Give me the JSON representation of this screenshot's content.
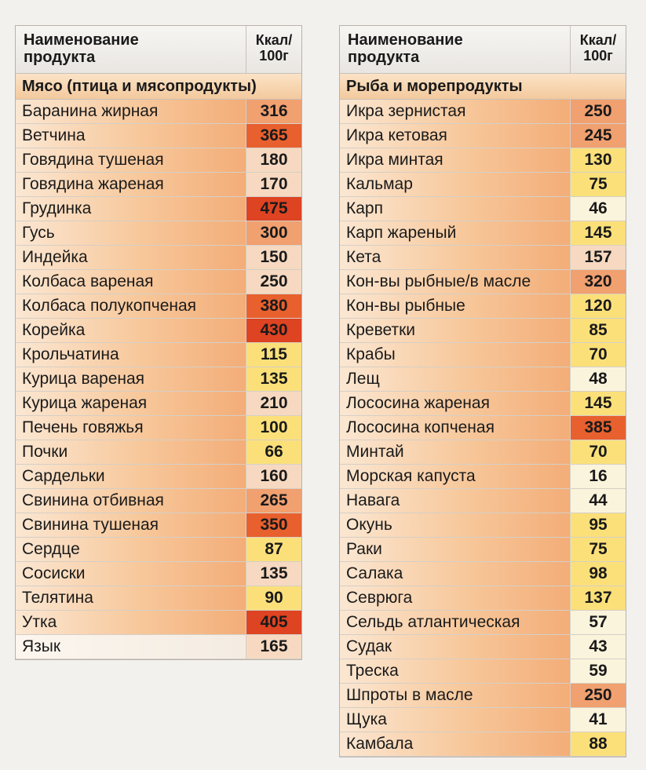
{
  "colors": {
    "very_low": "#fbf4dc",
    "low": "#fbe07a",
    "medium": "#f6d9c0",
    "elevated": "#f1a070",
    "high": "#e8602e",
    "very_high": "#de4322"
  },
  "left": {
    "header": {
      "name": "Наименование\nпродукта",
      "kcal": "Ккал/\n100г"
    },
    "section": "Мясо (птица и мясопродукты)",
    "rows": [
      {
        "name": "Баранина жирная",
        "value": "316",
        "level": "elevated"
      },
      {
        "name": "Ветчина",
        "value": "365",
        "level": "high"
      },
      {
        "name": "Говядина тушеная",
        "value": "180",
        "level": "medium"
      },
      {
        "name": "Говядина жареная",
        "value": "170",
        "level": "medium"
      },
      {
        "name": "Грудинка",
        "value": "475",
        "level": "very_high"
      },
      {
        "name": "Гусь",
        "value": "300",
        "level": "elevated"
      },
      {
        "name": "Индейка",
        "value": "150",
        "level": "medium"
      },
      {
        "name": "Колбаса вареная",
        "value": "250",
        "level": "medium"
      },
      {
        "name": "Колбаса полукопченая",
        "value": "380",
        "level": "high"
      },
      {
        "name": "Корейка",
        "value": "430",
        "level": "very_high"
      },
      {
        "name": "Крольчатина",
        "value": "115",
        "level": "low"
      },
      {
        "name": "Курица вареная",
        "value": "135",
        "level": "low"
      },
      {
        "name": "Курица жареная",
        "value": "210",
        "level": "medium"
      },
      {
        "name": "Печень говяжья",
        "value": "100",
        "level": "low"
      },
      {
        "name": "Почки",
        "value": "66",
        "level": "low"
      },
      {
        "name": "Сардельки",
        "value": "160",
        "level": "medium"
      },
      {
        "name": "Свинина отбивная",
        "value": "265",
        "level": "elevated"
      },
      {
        "name": "Свинина тушеная",
        "value": "350",
        "level": "high"
      },
      {
        "name": "Сердце",
        "value": "87",
        "level": "low"
      },
      {
        "name": "Сосиски",
        "value": "135",
        "level": "medium"
      },
      {
        "name": "Телятина",
        "value": "90",
        "level": "low"
      },
      {
        "name": "Утка",
        "value": "405",
        "level": "very_high"
      },
      {
        "name": "Язык",
        "value": "165",
        "level": "medium"
      }
    ]
  },
  "right": {
    "header": {
      "name": "Наименование\nпродукта",
      "kcal": "Ккал/\n100г"
    },
    "section": "Рыба и морепродукты",
    "rows": [
      {
        "name": "Икра зернистая",
        "value": "250",
        "level": "elevated"
      },
      {
        "name": "Икра кетовая",
        "value": "245",
        "level": "elevated"
      },
      {
        "name": "Икра минтая",
        "value": "130",
        "level": "low"
      },
      {
        "name": "Кальмар",
        "value": "75",
        "level": "low"
      },
      {
        "name": "Карп",
        "value": "46",
        "level": "very_low"
      },
      {
        "name": "Карп жареный",
        "value": "145",
        "level": "low"
      },
      {
        "name": "Кета",
        "value": "157",
        "level": "medium"
      },
      {
        "name": "Кон-вы рыбные/в масле",
        "value": "320",
        "level": "elevated"
      },
      {
        "name": "Кон-вы рыбные",
        "value": "120",
        "level": "low"
      },
      {
        "name": "Креветки",
        "value": "85",
        "level": "low"
      },
      {
        "name": "Крабы",
        "value": "70",
        "level": "low"
      },
      {
        "name": "Лещ",
        "value": "48",
        "level": "very_low"
      },
      {
        "name": "Лососина жареная",
        "value": "145",
        "level": "low"
      },
      {
        "name": "Лососина копченая",
        "value": "385",
        "level": "high"
      },
      {
        "name": "Минтай",
        "value": "70",
        "level": "low"
      },
      {
        "name": "Морская капуста",
        "value": "16",
        "level": "very_low"
      },
      {
        "name": "Навага",
        "value": "44",
        "level": "very_low"
      },
      {
        "name": "Окунь",
        "value": "95",
        "level": "low"
      },
      {
        "name": "Раки",
        "value": "75",
        "level": "low"
      },
      {
        "name": "Салака",
        "value": "98",
        "level": "low"
      },
      {
        "name": "Севрюга",
        "value": "137",
        "level": "low"
      },
      {
        "name": "Сельдь атлантическая",
        "value": "57",
        "level": "very_low"
      },
      {
        "name": "Судак",
        "value": "43",
        "level": "very_low"
      },
      {
        "name": "Треска",
        "value": "59",
        "level": "very_low"
      },
      {
        "name": "Шпроты в масле",
        "value": "250",
        "level": "elevated"
      },
      {
        "name": "Щука",
        "value": "41",
        "level": "very_low"
      },
      {
        "name": "Камбала",
        "value": "88",
        "level": "low"
      }
    ]
  }
}
